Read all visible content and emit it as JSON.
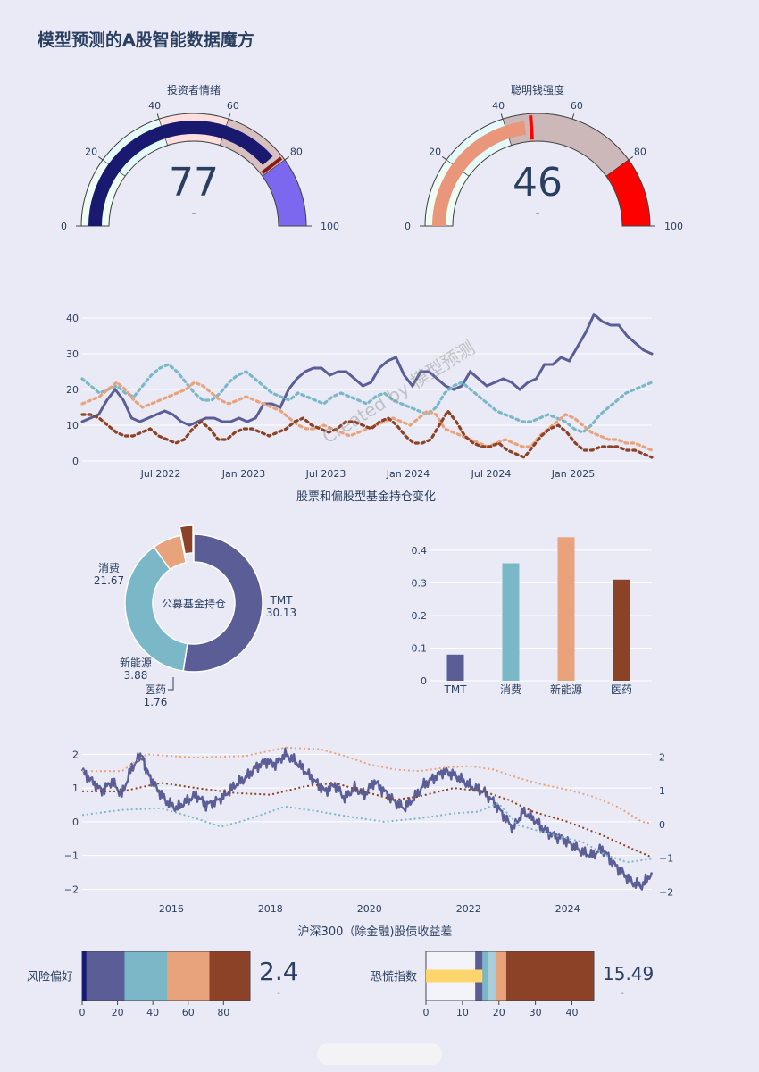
{
  "title": "模型预测的A股智能数据魔方",
  "watermark": "Created by 模型预测",
  "gauges": [
    {
      "title": "投资者情绪",
      "value": 77,
      "delta": "-",
      "range": [
        0,
        100
      ],
      "ticks": [
        0,
        20,
        40,
        60,
        80,
        100
      ],
      "threshold": 79,
      "steps": [
        {
          "range": [
            0,
            20
          ],
          "color": "#effdf5"
        },
        {
          "range": [
            20,
            40
          ],
          "color": "#e6fafa"
        },
        {
          "range": [
            40,
            60
          ],
          "color": "#fcdede"
        },
        {
          "range": [
            60,
            80
          ],
          "color": "#d8c0c0"
        },
        {
          "range": [
            80,
            100
          ],
          "color": "#7b68ee"
        }
      ],
      "bar_color": "#191970",
      "threshold_color": "#8b1a1a"
    },
    {
      "title": "聪明钱强度",
      "value": 46,
      "delta": "-",
      "range": [
        0,
        100
      ],
      "ticks": [
        0,
        20,
        40,
        60,
        80,
        100
      ],
      "threshold": 48,
      "steps": [
        {
          "range": [
            0,
            20
          ],
          "color": "#effdf5"
        },
        {
          "range": [
            20,
            40
          ],
          "color": "#e6fafa"
        },
        {
          "range": [
            40,
            80
          ],
          "color": "#ccb8b8"
        },
        {
          "range": [
            80,
            100
          ],
          "color": "#ff0000"
        }
      ],
      "bar_color": "#e9967a",
      "threshold_color": "#ff0000"
    }
  ],
  "chart_data": [
    {
      "type": "line",
      "xlabel": "股票和偏股型基金持仓变化",
      "x_ticks": [
        "Jul 2022",
        "Jan 2023",
        "Jul 2023",
        "Jan 2024",
        "Jul 2024",
        "Jan 2025"
      ],
      "x_range": [
        "2022-01",
        "2025-07"
      ],
      "ylim": [
        0,
        42
      ],
      "y_ticks": [
        0,
        10,
        20,
        30,
        40
      ],
      "series": [
        {
          "color": "#5b5e96",
          "style": "solid",
          "values": [
            11,
            12,
            13,
            17,
            20,
            17,
            12,
            11,
            12,
            13,
            14,
            13,
            11,
            10,
            11,
            12,
            12,
            11,
            11,
            12,
            11,
            12,
            16,
            16,
            15,
            20,
            23,
            25,
            26,
            26,
            24,
            25,
            25,
            23,
            21,
            22,
            26,
            28,
            29,
            24,
            21,
            25,
            25,
            23,
            21,
            20,
            21,
            25,
            23,
            21,
            22,
            23,
            22,
            20,
            22,
            23,
            27,
            27,
            29,
            28,
            32,
            36,
            41,
            39,
            38,
            38,
            35,
            33,
            31,
            30
          ]
        },
        {
          "color": "#7ab8c8",
          "style": "dot",
          "values": [
            23,
            21,
            19,
            20,
            21,
            19,
            18,
            21,
            24,
            26,
            27,
            25,
            22,
            19,
            17,
            17,
            19,
            22,
            24,
            25,
            23,
            21,
            19,
            18,
            17,
            19,
            18,
            17,
            16,
            18,
            19,
            18,
            17,
            16,
            18,
            19,
            17,
            16,
            15,
            14,
            13,
            15,
            19,
            21,
            22,
            20,
            18,
            16,
            14,
            13,
            12,
            11,
            11,
            12,
            13,
            12,
            11,
            9,
            8,
            10,
            13,
            15,
            17,
            19,
            20,
            21,
            22
          ]
        },
        {
          "color": "#e8a27c",
          "style": "dot",
          "values": [
            16,
            17,
            18,
            20,
            22,
            20,
            17,
            15,
            16,
            17,
            18,
            19,
            20,
            22,
            21,
            19,
            17,
            16,
            17,
            18,
            17,
            16,
            15,
            14,
            12,
            10,
            9,
            9,
            10,
            9,
            8,
            7,
            8,
            9,
            10,
            11,
            12,
            11,
            10,
            12,
            14,
            13,
            9,
            8,
            7,
            6,
            5,
            4,
            5,
            6,
            5,
            4,
            4,
            7,
            9,
            11,
            13,
            12,
            10,
            8,
            7,
            6,
            6,
            5,
            5,
            4,
            3
          ]
        },
        {
          "color": "#8b4226",
          "style": "dot",
          "values": [
            13,
            13,
            12,
            10,
            8,
            7,
            7,
            8,
            9,
            7,
            6,
            5,
            6,
            9,
            11,
            9,
            6,
            6,
            8,
            9,
            9,
            8,
            7,
            8,
            9,
            11,
            12,
            10,
            9,
            8,
            9,
            11,
            11,
            10,
            9,
            11,
            12,
            10,
            7,
            5,
            5,
            6,
            10,
            14,
            11,
            7,
            5,
            4,
            4,
            5,
            3,
            2,
            1,
            4,
            7,
            9,
            10,
            8,
            5,
            3,
            3,
            4,
            4,
            4,
            3,
            3,
            2,
            1
          ]
        }
      ]
    },
    {
      "type": "pie",
      "title": "公募基金持仓",
      "labels": [
        "TMT",
        "消费",
        "新能源",
        "医药"
      ],
      "values": [
        30.13,
        21.67,
        3.88,
        1.76
      ],
      "colors": [
        "#5b5e96",
        "#7ab8c8",
        "#e8a27c",
        "#8b4226"
      ]
    },
    {
      "type": "bar",
      "categories": [
        "TMT",
        "消费",
        "新能源",
        "医药"
      ],
      "values": [
        0.08,
        0.36,
        0.44,
        0.31
      ],
      "ylim": [
        0,
        0.46
      ],
      "y_ticks": [
        0,
        0.1,
        0.2,
        0.3,
        0.4
      ],
      "colors": [
        "#5b5e96",
        "#7ab8c8",
        "#e8a27c",
        "#8b4226"
      ]
    },
    {
      "type": "line",
      "xlabel": "沪深300（除金融)股债收益差",
      "x_ticks": [
        "2016",
        "2018",
        "2020",
        "2022",
        "2024"
      ],
      "x_range": [
        2014.2,
        2025.7
      ],
      "ylim": [
        -2.2,
        2.3
      ],
      "y_ticks": [
        -2,
        -1,
        0,
        1,
        2
      ],
      "y_tick_labels": [
        "−2",
        "−1",
        "0",
        "1",
        "2"
      ],
      "series": [
        {
          "color": "#5b5e96",
          "style": "solid",
          "points": [
            [
              2014.2,
              1.5
            ],
            [
              2014.4,
              1.2
            ],
            [
              2014.6,
              0.9
            ],
            [
              2014.8,
              1.2
            ],
            [
              2015.0,
              0.8
            ],
            [
              2015.2,
              1.6
            ],
            [
              2015.4,
              2.0
            ],
            [
              2015.5,
              1.5
            ],
            [
              2015.7,
              1.0
            ],
            [
              2015.9,
              0.6
            ],
            [
              2016.1,
              0.4
            ],
            [
              2016.3,
              0.6
            ],
            [
              2016.5,
              0.8
            ],
            [
              2016.7,
              0.5
            ],
            [
              2016.9,
              0.6
            ],
            [
              2017.1,
              0.8
            ],
            [
              2017.3,
              1.1
            ],
            [
              2017.5,
              1.3
            ],
            [
              2017.7,
              1.6
            ],
            [
              2017.9,
              1.8
            ],
            [
              2018.1,
              1.7
            ],
            [
              2018.3,
              2.0
            ],
            [
              2018.5,
              1.8
            ],
            [
              2018.7,
              1.5
            ],
            [
              2018.9,
              1.2
            ],
            [
              2019.1,
              0.9
            ],
            [
              2019.3,
              1.1
            ],
            [
              2019.5,
              0.7
            ],
            [
              2019.7,
              1.0
            ],
            [
              2019.9,
              0.8
            ],
            [
              2020.1,
              1.2
            ],
            [
              2020.3,
              0.9
            ],
            [
              2020.5,
              0.6
            ],
            [
              2020.7,
              0.4
            ],
            [
              2020.9,
              0.7
            ],
            [
              2021.1,
              1.1
            ],
            [
              2021.3,
              1.3
            ],
            [
              2021.5,
              1.5
            ],
            [
              2021.7,
              1.4
            ],
            [
              2021.9,
              1.2
            ],
            [
              2022.1,
              1.0
            ],
            [
              2022.3,
              0.9
            ],
            [
              2022.5,
              0.6
            ],
            [
              2022.7,
              0.2
            ],
            [
              2022.9,
              -0.2
            ],
            [
              2023.1,
              0.3
            ],
            [
              2023.3,
              0.1
            ],
            [
              2023.5,
              -0.2
            ],
            [
              2023.7,
              -0.4
            ],
            [
              2023.9,
              -0.5
            ],
            [
              2024.1,
              -0.7
            ],
            [
              2024.3,
              -0.9
            ],
            [
              2024.5,
              -1.0
            ],
            [
              2024.7,
              -0.8
            ],
            [
              2024.9,
              -1.2
            ],
            [
              2025.1,
              -1.5
            ],
            [
              2025.3,
              -1.8
            ],
            [
              2025.5,
              -1.9
            ],
            [
              2025.7,
              -1.5
            ]
          ]
        },
        {
          "color": "#e8a27c",
          "style": "dot",
          "points": [
            [
              2014.2,
              1.5
            ],
            [
              2015.0,
              1.5
            ],
            [
              2015.5,
              2.0
            ],
            [
              2016.5,
              1.9
            ],
            [
              2017.5,
              1.95
            ],
            [
              2018.3,
              2.2
            ],
            [
              2019.0,
              2.15
            ],
            [
              2019.5,
              1.95
            ],
            [
              2020.0,
              1.7
            ],
            [
              2020.5,
              1.55
            ],
            [
              2021.0,
              1.5
            ],
            [
              2021.5,
              1.6
            ],
            [
              2022.0,
              1.65
            ],
            [
              2022.5,
              1.55
            ],
            [
              2023.0,
              1.3
            ],
            [
              2023.5,
              1.1
            ],
            [
              2024.0,
              0.95
            ],
            [
              2024.5,
              0.75
            ],
            [
              2025.0,
              0.45
            ],
            [
              2025.5,
              0.0
            ],
            [
              2025.7,
              -0.05
            ]
          ]
        },
        {
          "color": "#8b4226",
          "style": "dot",
          "points": [
            [
              2014.2,
              0.9
            ],
            [
              2015.0,
              0.9
            ],
            [
              2015.8,
              1.15
            ],
            [
              2016.5,
              1.0
            ],
            [
              2017.3,
              0.85
            ],
            [
              2018.0,
              0.8
            ],
            [
              2018.7,
              1.05
            ],
            [
              2019.3,
              1.15
            ],
            [
              2020.0,
              0.85
            ],
            [
              2020.5,
              0.65
            ],
            [
              2021.0,
              0.75
            ],
            [
              2021.7,
              1.0
            ],
            [
              2022.3,
              0.9
            ],
            [
              2022.8,
              0.65
            ],
            [
              2023.3,
              0.3
            ],
            [
              2024.0,
              0.0
            ],
            [
              2024.7,
              -0.4
            ],
            [
              2025.3,
              -0.8
            ],
            [
              2025.7,
              -1.05
            ]
          ]
        },
        {
          "color": "#7ab8c8",
          "style": "dot",
          "points": [
            [
              2014.2,
              0.2
            ],
            [
              2015.0,
              0.35
            ],
            [
              2015.8,
              0.4
            ],
            [
              2016.5,
              0.1
            ],
            [
              2017.0,
              -0.15
            ],
            [
              2017.5,
              0.05
            ],
            [
              2018.3,
              0.45
            ],
            [
              2019.0,
              0.3
            ],
            [
              2019.6,
              0.15
            ],
            [
              2020.3,
              0.0
            ],
            [
              2021.0,
              0.1
            ],
            [
              2021.7,
              0.25
            ],
            [
              2022.2,
              0.3
            ],
            [
              2022.6,
              0.55
            ],
            [
              2023.0,
              -0.1
            ],
            [
              2023.6,
              -0.35
            ],
            [
              2024.3,
              -0.6
            ],
            [
              2024.8,
              -1.0
            ],
            [
              2025.2,
              -1.2
            ],
            [
              2025.7,
              -1.1
            ]
          ]
        }
      ]
    },
    {
      "type": "bar",
      "orientation": "horizontal",
      "ylabel": "风险偏好",
      "value": 2.4,
      "value_label": "2.4",
      "delta": "-",
      "xlim": [
        0,
        95
      ],
      "x_ticks": [
        0,
        20,
        40,
        60,
        80
      ],
      "steps": [
        {
          "range": [
            0,
            24
          ],
          "color": "#5b5e96"
        },
        {
          "range": [
            24,
            48
          ],
          "color": "#7ab8c8"
        },
        {
          "range": [
            48,
            72
          ],
          "color": "#e8a27c"
        },
        {
          "range": [
            72,
            95
          ],
          "color": "#8b4226"
        }
      ],
      "bar_color": "#191970"
    },
    {
      "type": "bar",
      "orientation": "horizontal",
      "ylabel": "恐慌指数",
      "value": 15.49,
      "value_label": "15.49",
      "delta": "-",
      "xlim": [
        0,
        46
      ],
      "x_ticks": [
        0,
        10,
        20,
        30,
        40
      ],
      "steps": [
        {
          "range": [
            0,
            13.5
          ],
          "color": "#f3f3fb"
        },
        {
          "range": [
            13.5,
            15.5
          ],
          "color": "#5b5e96"
        },
        {
          "range": [
            15.5,
            17
          ],
          "color": "#7ab8c8"
        },
        {
          "range": [
            17,
            19
          ],
          "color": "#a8cedb"
        },
        {
          "range": [
            19,
            22
          ],
          "color": "#e8a27c"
        },
        {
          "range": [
            22,
            46
          ],
          "color": "#8b4226"
        }
      ],
      "bar_color": "#ffd46b"
    }
  ]
}
